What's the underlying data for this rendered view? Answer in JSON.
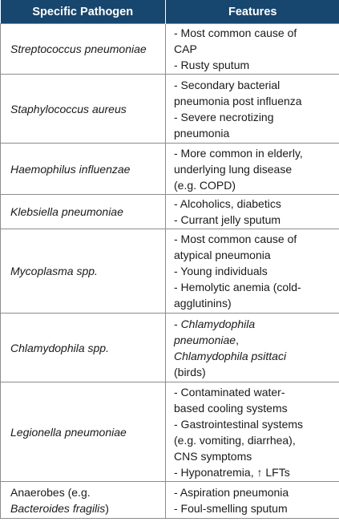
{
  "headers": [
    "Specific Pathogen",
    "Features"
  ],
  "rows": [
    {
      "pathogen": [
        {
          "t": "Streptococcus pneumoniae",
          "i": true
        }
      ],
      "features": [
        [
          {
            "t": "- Most common cause of",
            "i": false
          }
        ],
        [
          {
            "t": "CAP",
            "i": false
          }
        ],
        [
          {
            "t": "- Rusty sputum",
            "i": false
          }
        ]
      ]
    },
    {
      "pathogen": [
        {
          "t": "Staphylococcus aureus",
          "i": true
        }
      ],
      "features": [
        [
          {
            "t": "- Secondary bacterial",
            "i": false
          }
        ],
        [
          {
            "t": "pneumonia post influenza",
            "i": false
          }
        ],
        [
          {
            "t": "- Severe necrotizing",
            "i": false
          }
        ],
        [
          {
            "t": "pneumonia",
            "i": false
          }
        ]
      ]
    },
    {
      "pathogen": [
        {
          "t": "Haemophilus influenzae",
          "i": true
        }
      ],
      "features": [
        [
          {
            "t": "- More common in elderly,",
            "i": false
          }
        ],
        [
          {
            "t": "underlying lung disease",
            "i": false
          }
        ],
        [
          {
            "t": "(e.g. COPD)",
            "i": false
          }
        ]
      ]
    },
    {
      "pathogen": [
        {
          "t": "Klebsiella pneumoniae",
          "i": true
        }
      ],
      "features": [
        [
          {
            "t": "- Alcoholics, diabetics",
            "i": false
          }
        ],
        [
          {
            "t": "- Currant jelly sputum",
            "i": false
          }
        ]
      ]
    },
    {
      "pathogen": [
        {
          "t": "Mycoplasma spp.",
          "i": true
        }
      ],
      "features": [
        [
          {
            "t": "- Most common cause of",
            "i": false
          }
        ],
        [
          {
            "t": "atypical pneumonia",
            "i": false
          }
        ],
        [
          {
            "t": "- Young individuals",
            "i": false
          }
        ],
        [
          {
            "t": "- Hemolytic anemia (cold-",
            "i": false
          }
        ],
        [
          {
            "t": "agglutinins)",
            "i": false
          }
        ]
      ]
    },
    {
      "pathogen": [
        {
          "t": "Chlamydophila spp.",
          "i": true
        }
      ],
      "features": [
        [
          {
            "t": "- ",
            "i": false
          },
          {
            "t": "Chlamydophila",
            "i": true
          }
        ],
        [
          {
            "t": "pneumoniae",
            "i": true
          },
          {
            "t": ",",
            "i": false
          }
        ],
        [
          {
            "t": "Chlamydophila psittaci",
            "i": true
          }
        ],
        [
          {
            "t": "(birds)",
            "i": false
          }
        ]
      ]
    },
    {
      "pathogen": [
        {
          "t": "Legionella pneumoniae",
          "i": true
        }
      ],
      "features": [
        [
          {
            "t": "- Contaminated water-",
            "i": false
          }
        ],
        [
          {
            "t": "based cooling systems",
            "i": false
          }
        ],
        [
          {
            "t": "- Gastrointestinal systems",
            "i": false
          }
        ],
        [
          {
            "t": "(e.g. vomiting, diarrhea),",
            "i": false
          }
        ],
        [
          {
            "t": "CNS symptoms",
            "i": false
          }
        ],
        [
          {
            "t": "- Hyponatremia, ↑ LFTs",
            "i": false
          }
        ]
      ]
    },
    {
      "pathogen": [
        {
          "t": "Anaerobes (e.g.",
          "i": false,
          "br": true
        },
        {
          "t": "Bacteroides fragilis",
          "i": true
        },
        {
          "t": ")",
          "i": false
        }
      ],
      "features": [
        [
          {
            "t": "- Aspiration pneumonia",
            "i": false
          }
        ],
        [
          {
            "t": "- Foul-smelling sputum",
            "i": false
          }
        ]
      ]
    }
  ]
}
